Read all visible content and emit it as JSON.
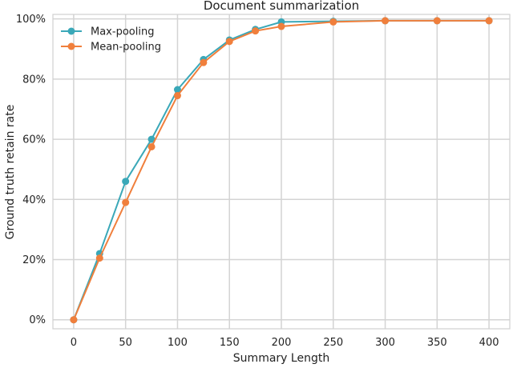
{
  "chart_data": {
    "type": "line",
    "title": "Document summarization",
    "xlabel": "Summary Length",
    "ylabel": "Ground truth retain rate",
    "x": [
      0,
      25,
      50,
      75,
      100,
      125,
      150,
      175,
      200,
      250,
      300,
      350,
      400
    ],
    "xticks": [
      0,
      50,
      100,
      150,
      200,
      250,
      300,
      350,
      400
    ],
    "xtick_labels": [
      "0",
      "50",
      "100",
      "150",
      "200",
      "250",
      "300",
      "350",
      "400"
    ],
    "yticks": [
      0,
      20,
      40,
      60,
      80,
      100
    ],
    "ytick_labels": [
      "0%",
      "20%",
      "40%",
      "60%",
      "80%",
      "100%"
    ],
    "xlim": [
      -20,
      420
    ],
    "ylim": [
      -3,
      101.5
    ],
    "grid": true,
    "legend_position": "top-left",
    "series": [
      {
        "name": "Max-pooling",
        "color": "#3aa8b8",
        "values": [
          0,
          22,
          46,
          60,
          76.5,
          86.5,
          93,
          96.5,
          99,
          99.2,
          99.4,
          99.4,
          99.4
        ]
      },
      {
        "name": "Mean-pooling",
        "color": "#f07f3c",
        "values": [
          0,
          20.5,
          39,
          57.5,
          74.5,
          85.5,
          92.5,
          96,
          97.5,
          99,
          99.4,
          99.4,
          99.4
        ]
      }
    ]
  }
}
